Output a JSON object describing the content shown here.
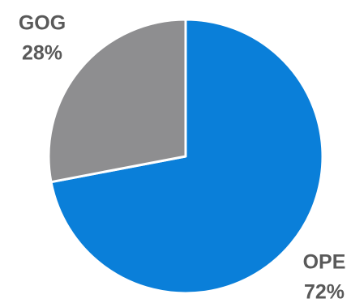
{
  "chart_data": {
    "type": "pie",
    "categories": [
      "OPE",
      "GOG"
    ],
    "values": [
      72,
      28
    ],
    "value_labels": [
      "72%",
      "28%"
    ],
    "colors": [
      "#0a7fd9",
      "#8e8e90"
    ]
  }
}
